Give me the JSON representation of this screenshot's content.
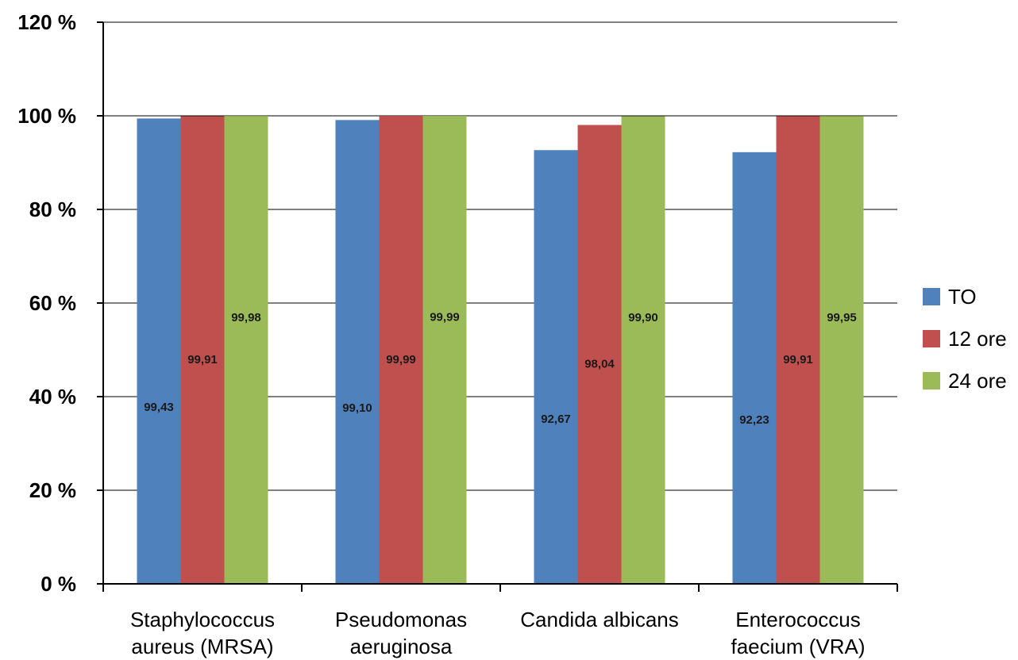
{
  "chart_data": {
    "type": "bar",
    "title": "",
    "xlabel": "",
    "ylabel": "",
    "categories": [
      [
        "Staphylococcus",
        "aureus (MRSA)"
      ],
      [
        "Pseudomonas",
        "aeruginosa"
      ],
      [
        "Candida albicans"
      ],
      [
        "Enterococcus",
        "faecium (VRA)"
      ]
    ],
    "series": [
      {
        "name": "TO",
        "color": "#4f81bd",
        "values": [
          99.43,
          99.1,
          92.67,
          92.23
        ],
        "labels": [
          "99,43",
          "99,10",
          "92,67",
          "92,23"
        ]
      },
      {
        "name": "12 ore",
        "color": "#c0504d",
        "values": [
          99.91,
          99.99,
          98.04,
          99.91
        ],
        "labels": [
          "99,91",
          "99,99",
          "98,04",
          "99,91"
        ]
      },
      {
        "name": "24 ore",
        "color": "#9bbb59",
        "values": [
          99.98,
          99.99,
          99.9,
          99.95
        ],
        "labels": [
          "99,98",
          "99,99",
          "99,90",
          "99,95"
        ]
      }
    ],
    "ylim": [
      0,
      120
    ],
    "yticks": [
      0,
      20,
      40,
      60,
      80,
      100,
      120
    ],
    "ytick_labels": [
      "0 %",
      "20 %",
      "40 %",
      "60 %",
      "80 %",
      "100 %",
      "120 %"
    ],
    "grid": true,
    "legend_position": "right"
  }
}
